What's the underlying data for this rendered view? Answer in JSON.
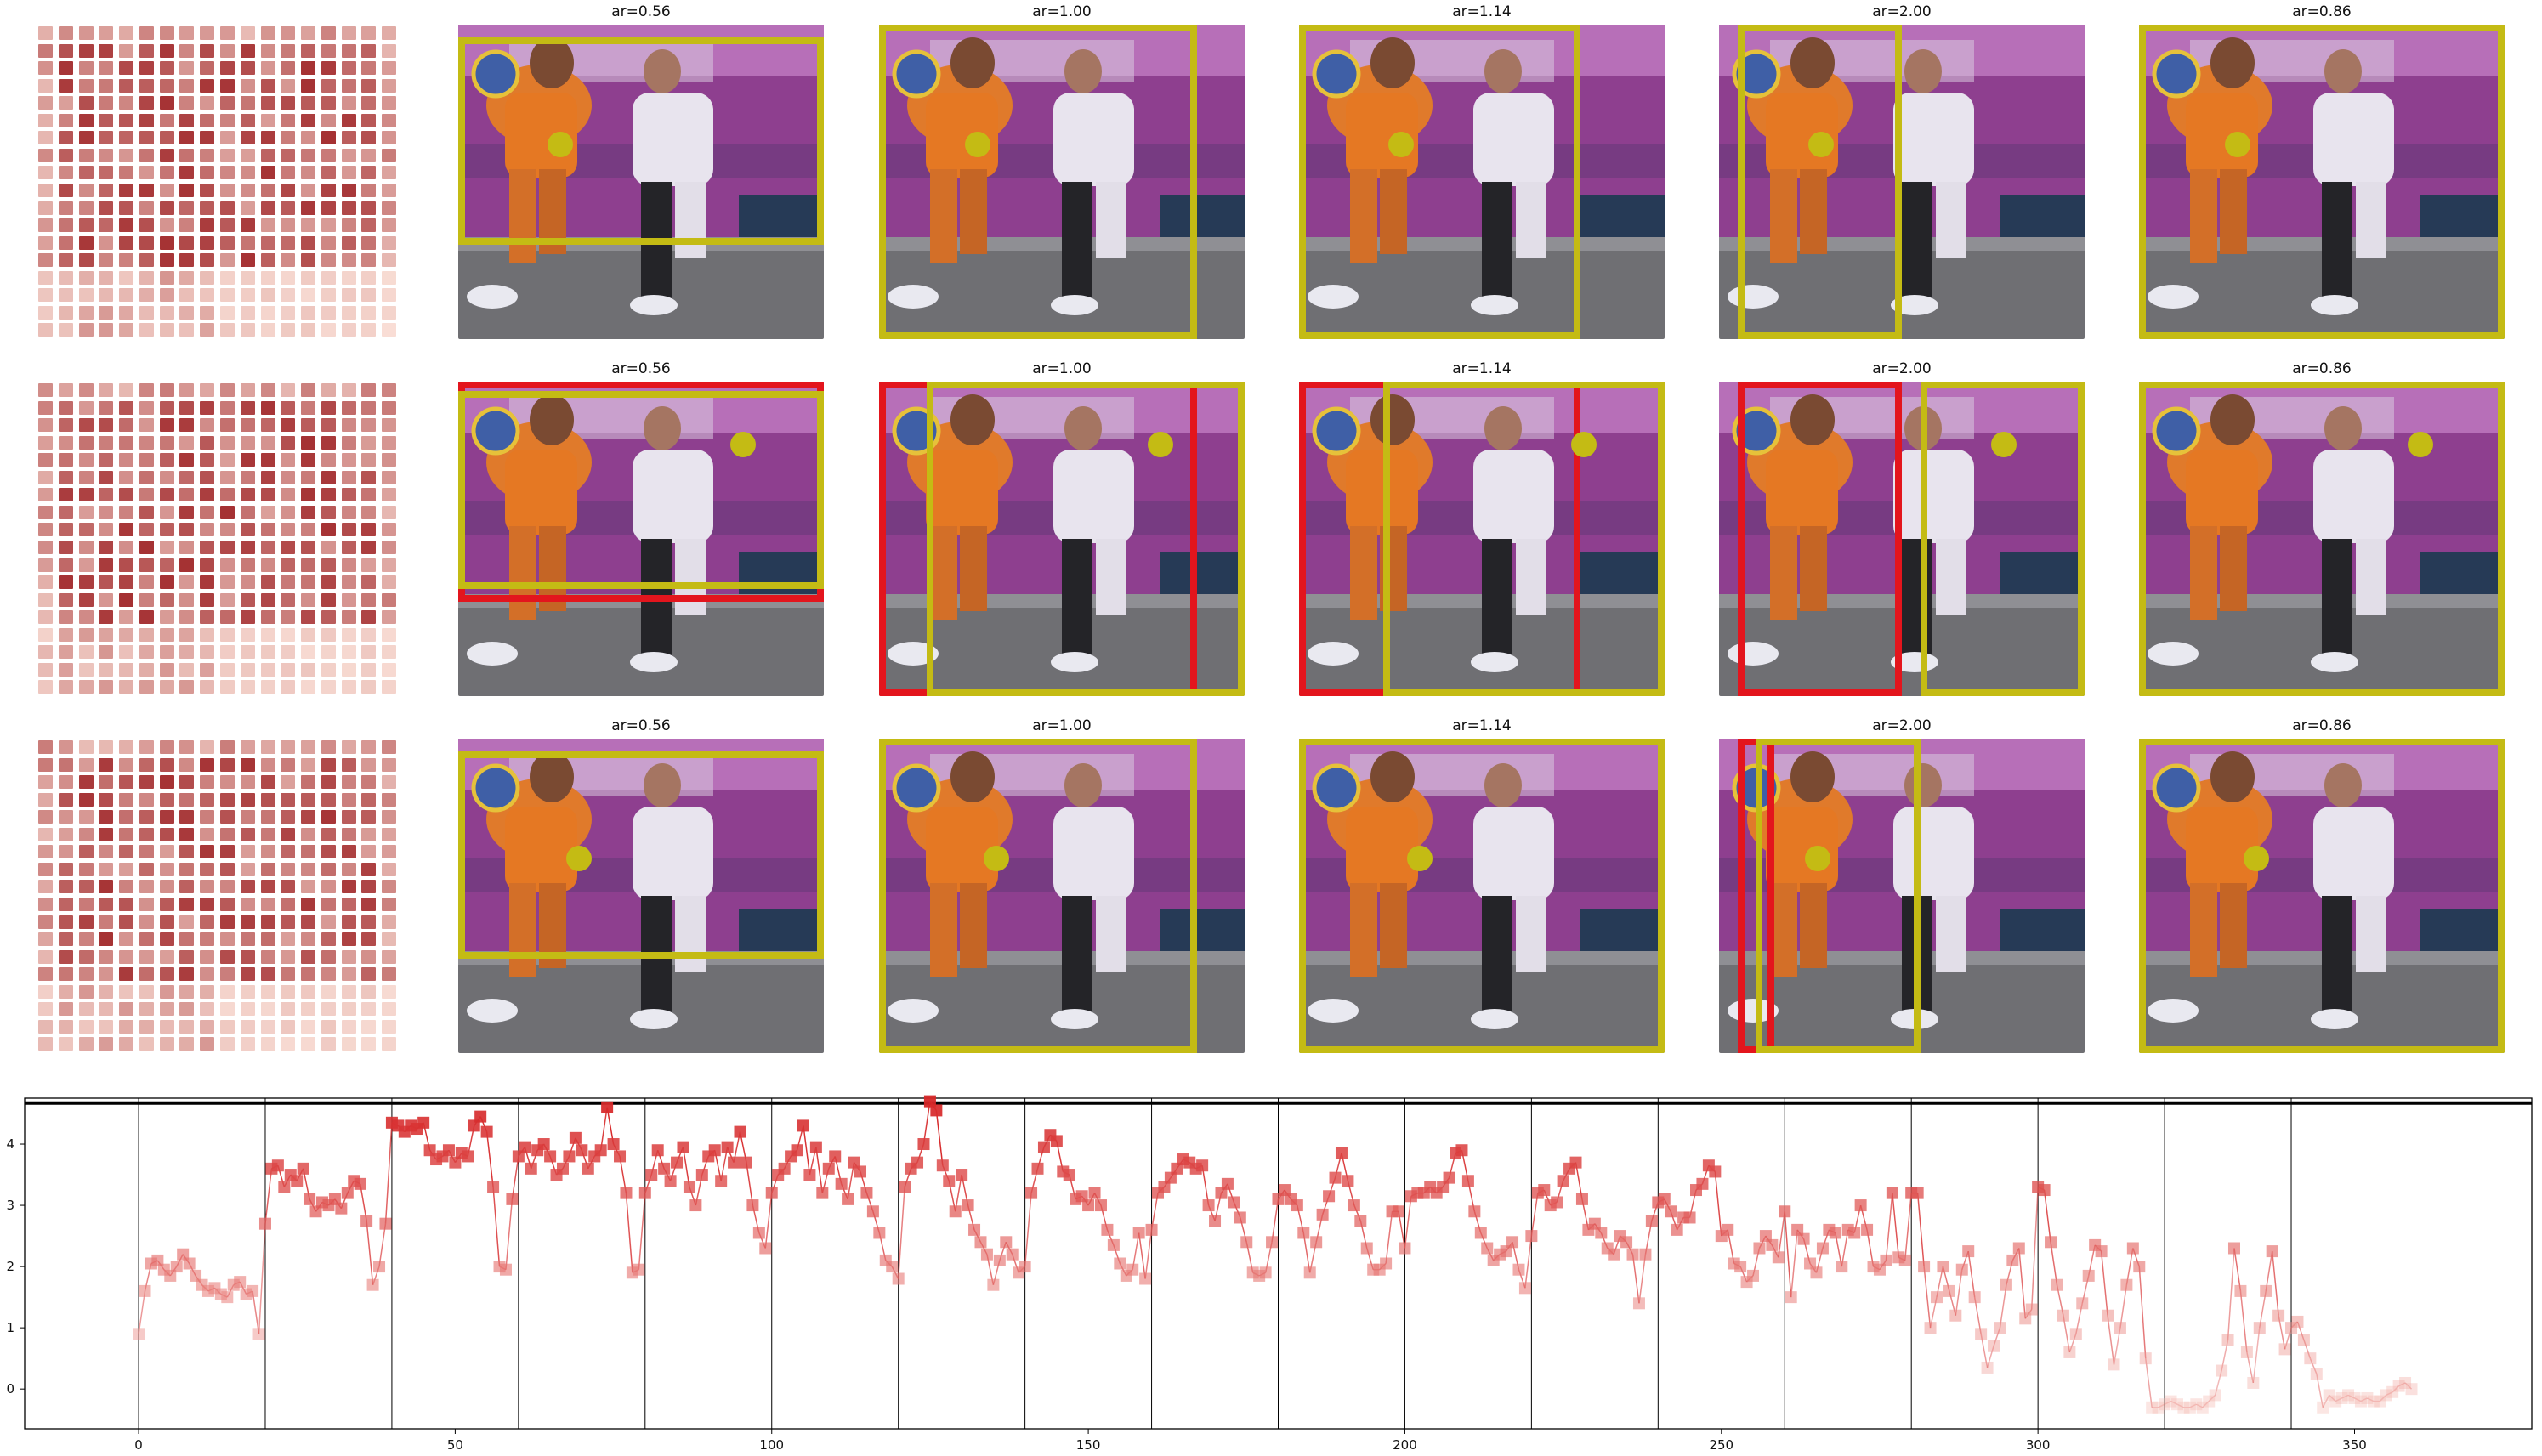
{
  "panel_titles": [
    "ar=0.56",
    "ar=1.00",
    "ar=1.14",
    "ar=2.00",
    "ar=0.86"
  ],
  "colors": {
    "highlight_box": "#c4bb14",
    "alt_box": "#e3151d",
    "heat_low": "#fde6dd",
    "heat_high": "#9b1d20",
    "series": "#d62728"
  },
  "rows": [
    {
      "panels": [
        {
          "title": "ar=0.56",
          "boxes": [
            "yellow"
          ]
        },
        {
          "title": "ar=1.00",
          "boxes": [
            "yellow"
          ]
        },
        {
          "title": "ar=1.14",
          "boxes": [
            "yellow"
          ]
        },
        {
          "title": "ar=2.00",
          "boxes": [
            "yellow"
          ]
        },
        {
          "title": "ar=0.86",
          "boxes": [
            "yellow"
          ]
        }
      ]
    },
    {
      "panels": [
        {
          "title": "ar=0.56",
          "boxes": [
            "red",
            "yellow"
          ]
        },
        {
          "title": "ar=1.00",
          "boxes": [
            "red",
            "yellow"
          ]
        },
        {
          "title": "ar=1.14",
          "boxes": [
            "red",
            "yellow"
          ]
        },
        {
          "title": "ar=2.00",
          "boxes": [
            "red",
            "yellow"
          ]
        },
        {
          "title": "ar=0.86",
          "boxes": [
            "yellow"
          ]
        }
      ]
    },
    {
      "panels": [
        {
          "title": "ar=0.56",
          "boxes": [
            "yellow"
          ]
        },
        {
          "title": "ar=1.00",
          "boxes": [
            "yellow"
          ]
        },
        {
          "title": "ar=1.14",
          "boxes": [
            "yellow"
          ]
        },
        {
          "title": "ar=2.00",
          "boxes": [
            "red",
            "yellow"
          ]
        },
        {
          "title": "ar=0.86",
          "boxes": [
            "yellow"
          ]
        }
      ]
    }
  ],
  "chart_data": {
    "type": "line",
    "title": "",
    "xlabel": "",
    "ylabel": "",
    "xlim": [
      -18,
      378
    ],
    "ylim": [
      -0.65,
      4.75
    ],
    "xticks": [
      0,
      50,
      100,
      150,
      200,
      250,
      300,
      350
    ],
    "yticks": [
      0,
      1,
      2,
      3,
      4
    ],
    "segment_boundaries": [
      0,
      20,
      40,
      60,
      80,
      100,
      120,
      140,
      160,
      180,
      200,
      220,
      240,
      260,
      280,
      300,
      320,
      340
    ],
    "horizontal_line_y": 4.67,
    "grid": false,
    "legend": "none",
    "series": [
      {
        "x_start": 0,
        "x_step": 1,
        "values": [
          0.9,
          1.6,
          2.05,
          2.1,
          1.95,
          1.85,
          2.0,
          2.2,
          2.05,
          1.85,
          1.7,
          1.6,
          1.65,
          1.55,
          1.5,
          1.7,
          1.75,
          1.55,
          1.6,
          0.9,
          2.7,
          3.6,
          3.65,
          3.3,
          3.5,
          3.4,
          3.6,
          3.1,
          2.9,
          3.05,
          3.0,
          3.1,
          2.95,
          3.2,
          3.4,
          3.35,
          2.75,
          1.7,
          2.0,
          2.7,
          4.35,
          4.3,
          4.2,
          4.3,
          4.25,
          4.35,
          3.9,
          3.75,
          3.8,
          3.9,
          3.7,
          3.85,
          3.8,
          4.3,
          4.45,
          4.2,
          3.3,
          2.0,
          1.95,
          3.1,
          3.8,
          3.95,
          3.6,
          3.9,
          4.0,
          3.8,
          3.5,
          3.6,
          3.8,
          4.1,
          3.9,
          3.6,
          3.8,
          3.9,
          4.6,
          4.0,
          3.8,
          3.2,
          1.9,
          1.95,
          3.2,
          3.5,
          3.9,
          3.6,
          3.4,
          3.7,
          3.95,
          3.3,
          3.0,
          3.5,
          3.8,
          3.9,
          3.4,
          3.95,
          3.7,
          4.2,
          3.7,
          3.0,
          2.55,
          2.3,
          3.2,
          3.5,
          3.6,
          3.8,
          3.9,
          4.3,
          3.5,
          3.95,
          3.2,
          3.6,
          3.8,
          3.35,
          3.1,
          3.7,
          3.55,
          3.2,
          2.9,
          2.55,
          2.1,
          2.0,
          1.8,
          3.3,
          3.6,
          3.7,
          4.0,
          4.7,
          4.55,
          3.65,
          3.4,
          2.9,
          3.5,
          3.0,
          2.6,
          2.4,
          2.2,
          1.7,
          2.1,
          2.4,
          2.2,
          1.9,
          2.0,
          3.2,
          3.6,
          3.95,
          4.15,
          4.05,
          3.55,
          3.5,
          3.1,
          3.15,
          3.0,
          3.2,
          3.0,
          2.6,
          2.35,
          2.05,
          1.85,
          1.95,
          2.55,
          1.8,
          2.6,
          3.2,
          3.3,
          3.45,
          3.6,
          3.75,
          3.7,
          3.6,
          3.65,
          3.0,
          2.75,
          3.2,
          3.35,
          3.05,
          2.8,
          2.4,
          1.9,
          1.85,
          1.9,
          2.4,
          3.1,
          3.25,
          3.1,
          3.0,
          2.55,
          1.9,
          2.4,
          2.85,
          3.15,
          3.45,
          3.85,
          3.4,
          3.0,
          2.75,
          2.3,
          1.95,
          1.95,
          2.05,
          2.9,
          2.9,
          2.3,
          3.15,
          3.2,
          3.2,
          3.3,
          3.2,
          3.3,
          3.45,
          3.85,
          3.9,
          3.4,
          2.9,
          2.55,
          2.3,
          2.1,
          2.2,
          2.25,
          2.4,
          1.95,
          1.65,
          2.5,
          3.2,
          3.25,
          3.0,
          3.05,
          3.4,
          3.6,
          3.7,
          3.1,
          2.6,
          2.7,
          2.55,
          2.3,
          2.2,
          2.5,
          2.4,
          2.2,
          1.4,
          2.2,
          2.75,
          3.05,
          3.1,
          2.9,
          2.6,
          2.8,
          2.8,
          3.25,
          3.35,
          3.65,
          3.55,
          2.5,
          2.6,
          2.05,
          2.0,
          1.75,
          1.85,
          2.3,
          2.5,
          2.35,
          2.15,
          2.9,
          1.5,
          2.6,
          2.45,
          2.05,
          1.9,
          2.3,
          2.6,
          2.55,
          2.0,
          2.6,
          2.55,
          3.0,
          2.6,
          2.0,
          1.95,
          2.1,
          3.2,
          2.15,
          2.1,
          3.2,
          3.2,
          2.0,
          1.0,
          1.5,
          2.0,
          1.6,
          1.2,
          1.95,
          2.25,
          1.5,
          0.9,
          0.35,
          0.7,
          1.0,
          1.7,
          2.1,
          2.3,
          1.15,
          1.3,
          3.3,
          3.25,
          2.4,
          1.7,
          1.2,
          0.6,
          0.9,
          1.4,
          1.85,
          2.35,
          2.25,
          1.2,
          0.4,
          1.0,
          1.7,
          2.3,
          2.0,
          0.5,
          -0.3,
          -0.3,
          -0.25,
          -0.2,
          -0.25,
          -0.3,
          -0.3,
          -0.25,
          -0.3,
          -0.2,
          -0.1,
          0.3,
          0.8,
          2.3,
          1.6,
          0.6,
          0.1,
          1.0,
          1.6,
          2.25,
          1.2,
          0.65,
          1.0,
          1.1,
          0.8,
          0.5,
          0.25,
          -0.3,
          -0.1,
          -0.2,
          -0.15,
          -0.1,
          -0.15,
          -0.2,
          -0.15,
          -0.2,
          -0.2,
          -0.1,
          -0.05,
          0.05,
          0.1,
          0.0
        ]
      }
    ]
  }
}
